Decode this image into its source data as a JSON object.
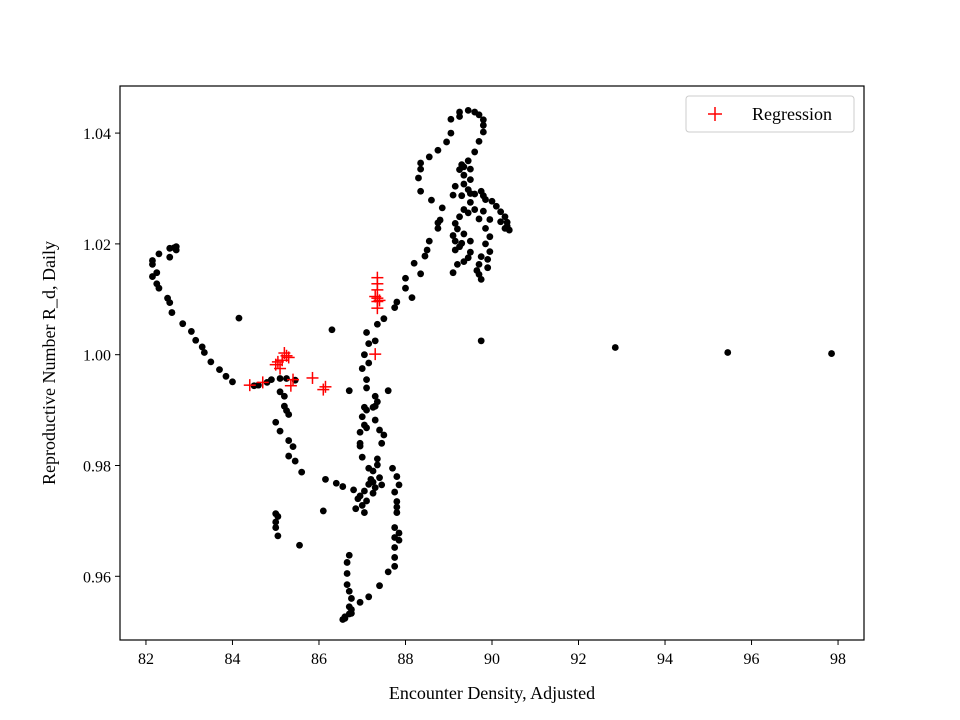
{
  "chart_data": {
    "type": "scatter",
    "title": "",
    "xlabel": "Encounter Density, Adjusted",
    "ylabel": "Reproductive Number R_d, Daily",
    "xlim": [
      81.4,
      98.6
    ],
    "ylim": [
      0.9485,
      1.0485
    ],
    "xticks": [
      82,
      84,
      86,
      88,
      90,
      92,
      94,
      96,
      98
    ],
    "yticks": [
      0.96,
      0.98,
      1.0,
      1.02,
      1.04
    ],
    "xtick_labels": [
      "82",
      "84",
      "86",
      "88",
      "90",
      "92",
      "94",
      "96",
      "98"
    ],
    "ytick_labels": [
      "0.96",
      "0.98",
      "1.00",
      "1.02",
      "1.04"
    ],
    "grid": false,
    "legend": {
      "placement": "top-right",
      "entries": [
        "Regression"
      ]
    },
    "colors": {
      "observed": "#000000",
      "regression": "#ff0000"
    },
    "series": [
      {
        "marker": "dot",
        "color": "#000000",
        "points": [
          [
            82.15,
            1.017
          ],
          [
            82.15,
            1.0163
          ],
          [
            82.15,
            1.0141
          ],
          [
            82.25,
            1.0148
          ],
          [
            82.3,
            1.0182
          ],
          [
            82.25,
            1.0128
          ],
          [
            82.3,
            1.012
          ],
          [
            82.5,
            1.0102
          ],
          [
            82.55,
            1.0094
          ],
          [
            82.6,
            1.0076
          ],
          [
            82.55,
            1.0176
          ],
          [
            82.55,
            1.0192
          ],
          [
            82.65,
            1.0193
          ],
          [
            82.7,
            1.0195
          ],
          [
            82.7,
            1.0189
          ],
          [
            82.85,
            1.0056
          ],
          [
            83.05,
            1.0042
          ],
          [
            83.15,
            1.0026
          ],
          [
            83.3,
            1.0014
          ],
          [
            83.35,
            1.0004
          ],
          [
            83.5,
            0.9987
          ],
          [
            83.7,
            0.9973
          ],
          [
            83.85,
            0.9961
          ],
          [
            84.0,
            0.9951
          ],
          [
            84.15,
            1.0066
          ],
          [
            84.5,
            0.9944
          ],
          [
            84.6,
            0.9945
          ],
          [
            84.8,
            0.995
          ],
          [
            84.9,
            0.9955
          ],
          [
            85.1,
            0.9957
          ],
          [
            85.25,
            0.9957
          ],
          [
            85.45,
            0.9954
          ],
          [
            85.1,
            0.9933
          ],
          [
            85.2,
            0.9925
          ],
          [
            85.2,
            0.9907
          ],
          [
            85.25,
            0.9899
          ],
          [
            85.3,
            0.9892
          ],
          [
            85.0,
            0.9878
          ],
          [
            85.1,
            0.9862
          ],
          [
            85.3,
            0.9845
          ],
          [
            85.4,
            0.9834
          ],
          [
            85.3,
            0.9817
          ],
          [
            85.45,
            0.9808
          ],
          [
            85.6,
            0.9788
          ],
          [
            85.0,
            0.9713
          ],
          [
            85.05,
            0.9708
          ],
          [
            85.0,
            0.9698
          ],
          [
            85.0,
            0.9688
          ],
          [
            85.05,
            0.9673
          ],
          [
            85.55,
            0.9656
          ],
          [
            86.1,
            0.9718
          ],
          [
            86.15,
            0.9775
          ],
          [
            86.4,
            0.9768
          ],
          [
            86.55,
            0.9762
          ],
          [
            86.8,
            0.9756
          ],
          [
            86.85,
            0.9722
          ],
          [
            87.0,
            0.9728
          ],
          [
            87.1,
            0.9736
          ],
          [
            87.05,
            0.9754
          ],
          [
            87.15,
            0.9766
          ],
          [
            87.2,
            0.9775
          ],
          [
            87.25,
            0.977
          ],
          [
            87.3,
            0.976
          ],
          [
            87.25,
            0.975
          ],
          [
            86.9,
            0.974
          ],
          [
            87.0,
            0.9815
          ],
          [
            86.95,
            0.984
          ],
          [
            86.95,
            0.986
          ],
          [
            87.05,
            0.9873
          ],
          [
            87.1,
            0.99
          ],
          [
            87.25,
            0.9905
          ],
          [
            87.35,
            0.9915
          ],
          [
            87.3,
            0.9925
          ],
          [
            87.6,
            0.9935
          ],
          [
            87.1,
            0.994
          ],
          [
            87.1,
            0.9955
          ],
          [
            87.0,
            0.9975
          ],
          [
            87.15,
            0.9985
          ],
          [
            87.05,
            1.0
          ],
          [
            87.15,
            1.002
          ],
          [
            87.1,
            1.004
          ],
          [
            87.3,
            1.0025
          ],
          [
            87.35,
            1.0055
          ],
          [
            87.5,
            1.0065
          ],
          [
            87.75,
            1.0085
          ],
          [
            87.8,
            1.0095
          ],
          [
            88.0,
            1.012
          ],
          [
            88.0,
            1.0138
          ],
          [
            88.15,
            1.0103
          ],
          [
            88.2,
            1.0165
          ],
          [
            88.35,
            1.0146
          ],
          [
            88.45,
            1.0178
          ],
          [
            88.5,
            1.0189
          ],
          [
            88.55,
            1.0205
          ],
          [
            88.75,
            1.0228
          ],
          [
            88.8,
            1.0243
          ],
          [
            88.75,
            1.0238
          ],
          [
            88.6,
            1.0279
          ],
          [
            88.35,
            1.0295
          ],
          [
            88.3,
            1.0319
          ],
          [
            88.35,
            1.0335
          ],
          [
            88.35,
            1.0346
          ],
          [
            88.55,
            1.0357
          ],
          [
            88.75,
            1.0369
          ],
          [
            88.95,
            1.0384
          ],
          [
            89.05,
            1.04
          ],
          [
            89.05,
            1.0425
          ],
          [
            89.25,
            1.043
          ],
          [
            89.25,
            1.0438
          ],
          [
            89.45,
            1.0441
          ],
          [
            89.6,
            1.0438
          ],
          [
            89.7,
            1.0433
          ],
          [
            89.8,
            1.0424
          ],
          [
            89.8,
            1.0414
          ],
          [
            89.8,
            1.0402
          ],
          [
            89.7,
            1.0385
          ],
          [
            89.6,
            1.0366
          ],
          [
            89.45,
            1.035
          ],
          [
            89.3,
            1.0343
          ],
          [
            89.35,
            1.0339
          ],
          [
            89.25,
            1.0334
          ],
          [
            89.5,
            1.0335
          ],
          [
            89.35,
            1.0324
          ],
          [
            89.5,
            1.0316
          ],
          [
            89.35,
            1.0308
          ],
          [
            89.45,
            1.0298
          ],
          [
            89.6,
            1.029
          ],
          [
            89.75,
            1.0295
          ],
          [
            89.8,
            1.0287
          ],
          [
            89.85,
            1.028
          ],
          [
            90.0,
            1.0277
          ],
          [
            90.1,
            1.0268
          ],
          [
            90.2,
            1.0258
          ],
          [
            90.3,
            1.0249
          ],
          [
            90.35,
            1.0239
          ],
          [
            90.35,
            1.0232
          ],
          [
            90.4,
            1.0225
          ],
          [
            90.3,
            1.0228
          ],
          [
            90.2,
            1.024
          ],
          [
            89.5,
            1.0275
          ],
          [
            89.6,
            1.0262
          ],
          [
            89.45,
            1.0256
          ],
          [
            89.35,
            1.0262
          ],
          [
            89.25,
            1.0249
          ],
          [
            89.15,
            1.0237
          ],
          [
            89.2,
            1.0227
          ],
          [
            89.35,
            1.0218
          ],
          [
            89.5,
            1.0205
          ],
          [
            89.3,
            1.0201
          ],
          [
            89.25,
            1.0195
          ],
          [
            89.15,
            1.0189
          ],
          [
            89.5,
            1.0185
          ],
          [
            89.45,
            1.0175
          ],
          [
            89.35,
            1.0168
          ],
          [
            89.2,
            1.0163
          ],
          [
            89.75,
            1.0177
          ],
          [
            89.7,
            1.0163
          ],
          [
            89.65,
            1.0152
          ],
          [
            89.7,
            1.0145
          ],
          [
            89.75,
            1.0136
          ],
          [
            89.9,
            1.0157
          ],
          [
            89.9,
            1.0172
          ],
          [
            89.95,
            1.0186
          ],
          [
            89.85,
            1.02
          ],
          [
            89.95,
            1.0213
          ],
          [
            89.85,
            1.0228
          ],
          [
            89.7,
            1.0245
          ],
          [
            89.8,
            1.0259
          ],
          [
            89.95,
            1.0244
          ],
          [
            88.85,
            1.0265
          ],
          [
            89.1,
            1.0288
          ],
          [
            89.15,
            1.0304
          ],
          [
            89.3,
            1.0287
          ],
          [
            89.5,
            1.0291
          ],
          [
            89.1,
            1.0148
          ],
          [
            87.3,
            0.9907
          ],
          [
            87.3,
            0.9882
          ],
          [
            87.4,
            0.9864
          ],
          [
            87.5,
            0.9855
          ],
          [
            87.45,
            0.984
          ],
          [
            87.35,
            0.9812
          ],
          [
            87.35,
            0.9801
          ],
          [
            87.4,
            0.9778
          ],
          [
            87.25,
            0.979
          ],
          [
            87.15,
            0.9795
          ],
          [
            86.95,
            0.9835
          ],
          [
            87.45,
            0.9765
          ],
          [
            87.7,
            0.9795
          ],
          [
            87.8,
            0.9735
          ],
          [
            87.8,
            0.9715
          ],
          [
            87.75,
            0.967
          ],
          [
            87.75,
            0.9652
          ],
          [
            87.75,
            0.9634
          ],
          [
            87.75,
            0.9618
          ],
          [
            87.6,
            0.9608
          ],
          [
            87.4,
            0.9583
          ],
          [
            87.15,
            0.9563
          ],
          [
            86.95,
            0.9553
          ],
          [
            86.7,
            0.9545
          ],
          [
            86.75,
            0.954
          ],
          [
            86.75,
            0.9533
          ],
          [
            86.6,
            0.9527
          ],
          [
            86.6,
            0.9524
          ],
          [
            86.55,
            0.9522
          ],
          [
            86.7,
            0.9532
          ],
          [
            86.75,
            0.956
          ],
          [
            86.7,
            0.9573
          ],
          [
            86.65,
            0.9585
          ],
          [
            86.65,
            0.9605
          ],
          [
            86.65,
            0.9625
          ],
          [
            86.7,
            0.9638
          ],
          [
            86.7,
            0.9935
          ],
          [
            86.3,
            1.0045
          ],
          [
            89.75,
            1.0025
          ],
          [
            92.85,
            1.0013
          ],
          [
            95.45,
            1.0004
          ],
          [
            97.85,
            1.0002
          ],
          [
            87.8,
            0.978
          ],
          [
            87.85,
            0.9765
          ],
          [
            87.75,
            0.9752
          ],
          [
            87.8,
            0.9725
          ],
          [
            87.75,
            0.9688
          ],
          [
            87.85,
            0.9678
          ],
          [
            87.85,
            0.9665
          ],
          [
            87.05,
            0.9715
          ],
          [
            86.95,
            0.9745
          ],
          [
            87.05,
            0.9905
          ],
          [
            87.0,
            0.9888
          ],
          [
            87.1,
            0.9868
          ],
          [
            89.1,
            1.0215
          ],
          [
            89.15,
            1.0205
          ]
        ]
      },
      {
        "name": "Regression",
        "marker": "plus",
        "color": "#ff0000",
        "points": [
          [
            84.4,
            0.9945
          ],
          [
            84.7,
            0.995
          ],
          [
            85.0,
            0.9982
          ],
          [
            85.05,
            0.9987
          ],
          [
            85.1,
            0.9975
          ],
          [
            85.15,
            0.999
          ],
          [
            85.2,
            1.0003
          ],
          [
            85.25,
            0.9998
          ],
          [
            85.3,
            0.9995
          ],
          [
            85.35,
            0.9944
          ],
          [
            85.4,
            0.9955
          ],
          [
            85.85,
            0.9958
          ],
          [
            86.1,
            0.9937
          ],
          [
            86.15,
            0.9942
          ],
          [
            87.3,
            1.0001
          ],
          [
            87.35,
            1.0139
          ],
          [
            87.35,
            1.0128
          ],
          [
            87.35,
            1.0117
          ],
          [
            87.3,
            1.0105
          ],
          [
            87.35,
            1.0102
          ],
          [
            87.4,
            1.0098
          ],
          [
            87.35,
            1.0096
          ],
          [
            87.35,
            1.0084
          ]
        ]
      }
    ]
  }
}
